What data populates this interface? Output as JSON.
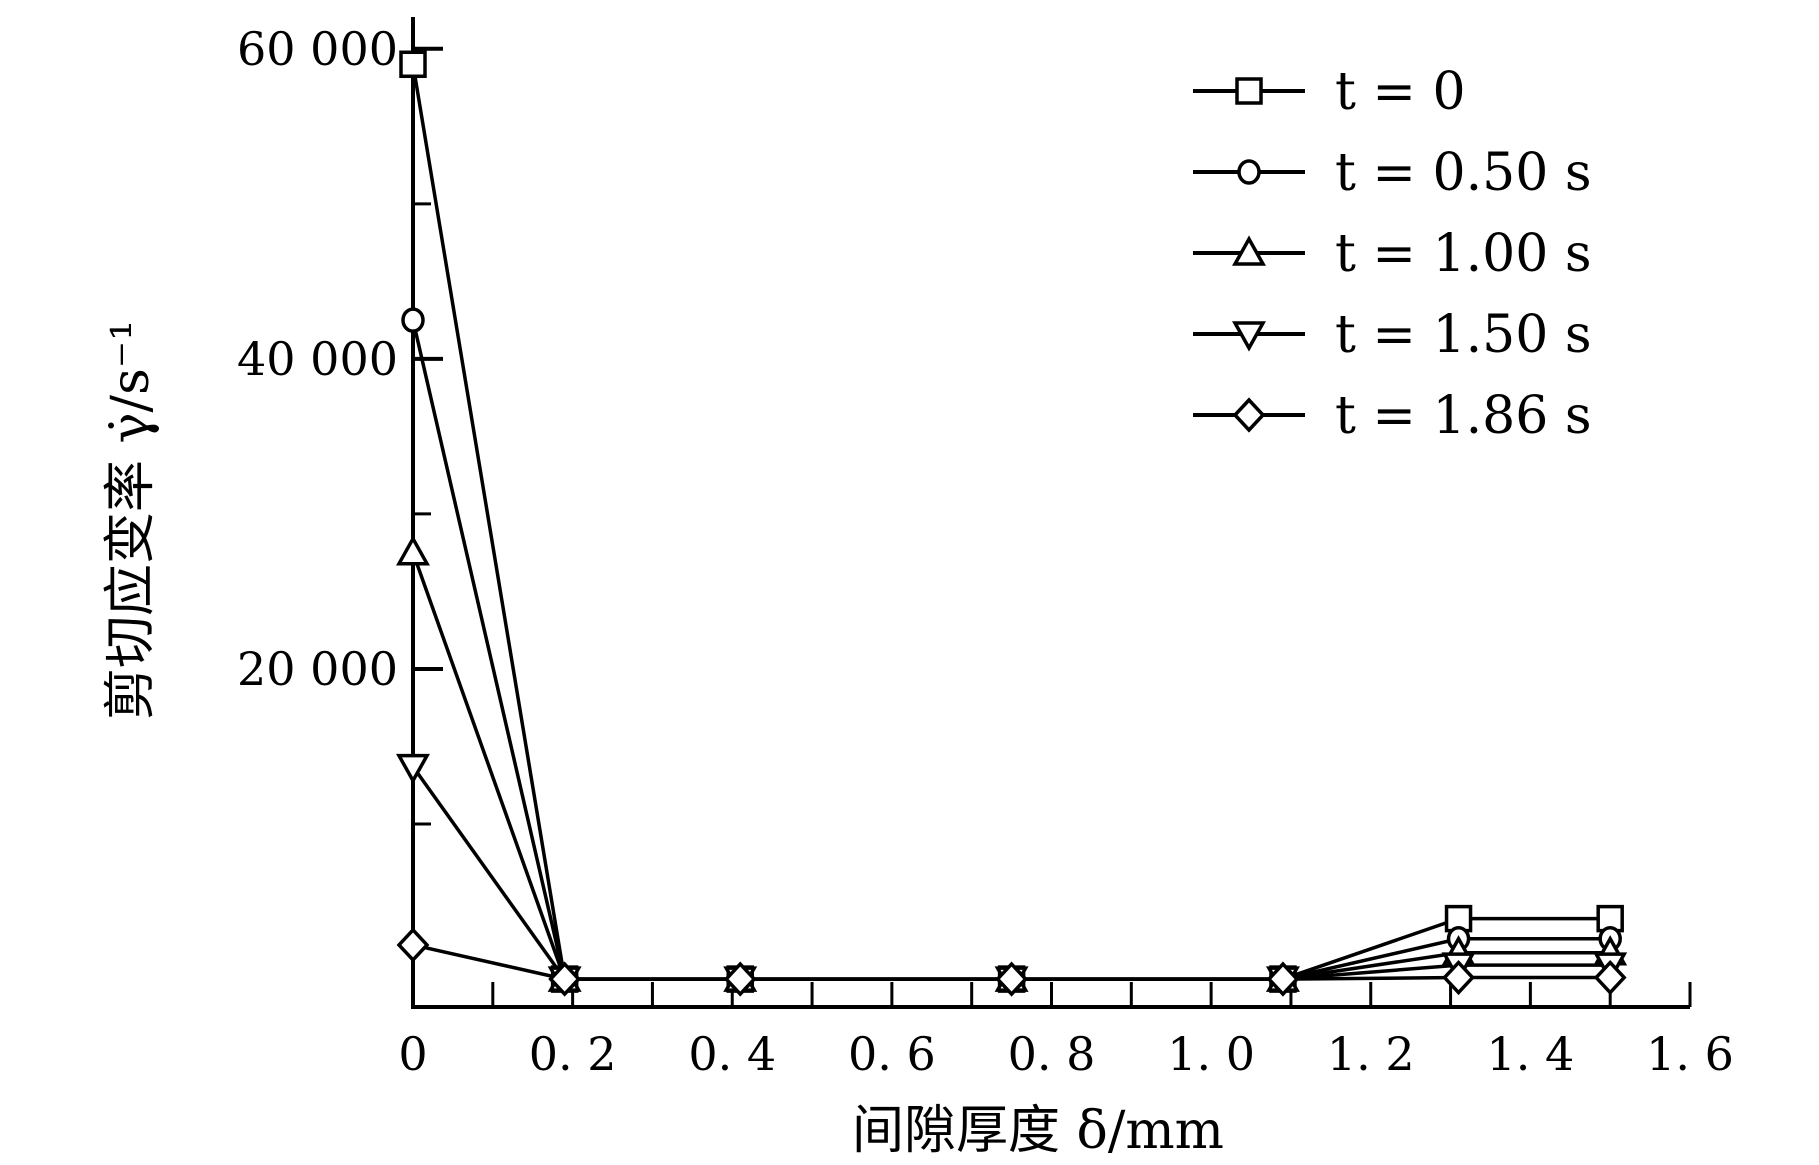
{
  "chart_data": {
    "type": "line",
    "xlabel": "间隙厚度 δ/mm",
    "ylabel": "剪切应变率 γ̇/s⁻¹",
    "xlim": [
      0,
      1.6
    ],
    "ylim": [
      -1800,
      62500
    ],
    "x_ticks": [
      0,
      0.2,
      0.4,
      0.6,
      0.8,
      1.0,
      1.2,
      1.4,
      1.6
    ],
    "x_tick_labels": [
      "0",
      "0. 2",
      "0. 4",
      "0. 6",
      "0. 8",
      "1. 0",
      "1. 2",
      "1. 4",
      "1. 6"
    ],
    "y_ticks": [
      20000,
      40000,
      60000
    ],
    "y_tick_labels": [
      "20 000",
      "40 000",
      "60 000"
    ],
    "grid": false,
    "legend_position": "top-right",
    "series": [
      {
        "name": "t = 0",
        "marker": "square",
        "x": [
          0.0,
          0.19,
          0.41,
          0.75,
          1.09,
          1.31,
          1.5
        ],
        "y": [
          59000,
          0,
          0,
          0,
          0,
          3900,
          3900
        ]
      },
      {
        "name": "t = 0.50 s",
        "marker": "circle",
        "x": [
          0.0,
          0.19,
          0.41,
          0.75,
          1.09,
          1.31,
          1.5
        ],
        "y": [
          42500,
          0,
          0,
          0,
          0,
          2600,
          2600
        ]
      },
      {
        "name": "t = 1.00 s",
        "marker": "triangle-up",
        "x": [
          0.0,
          0.19,
          0.41,
          0.75,
          1.09,
          1.31,
          1.5
        ],
        "y": [
          27500,
          0,
          0,
          0,
          0,
          1700,
          1700
        ]
      },
      {
        "name": "t = 1.50 s",
        "marker": "triangle-down",
        "x": [
          0.0,
          0.19,
          0.41,
          0.75,
          1.09,
          1.31,
          1.5
        ],
        "y": [
          13700,
          0,
          0,
          0,
          0,
          900,
          900
        ]
      },
      {
        "name": "t = 1.86 s",
        "marker": "diamond",
        "x": [
          0.0,
          0.19,
          0.41,
          0.75,
          1.09,
          1.31,
          1.5
        ],
        "y": [
          2200,
          0,
          0,
          0,
          0,
          100,
          100
        ]
      }
    ]
  }
}
